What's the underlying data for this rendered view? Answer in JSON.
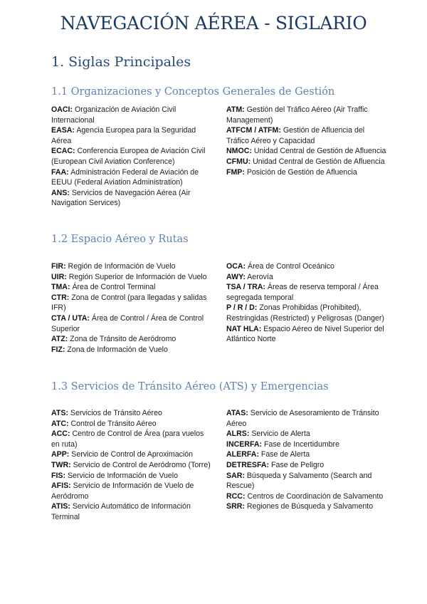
{
  "title": "NAVEGACIÓN AÉREA - SIGLARIO",
  "heading": "1. Siglas Principales",
  "sections": [
    {
      "heading": "1.1 Organizaciones y Conceptos Generales de Gestión",
      "left": [
        {
          "abbr": "OACI:",
          "def": "Organización de Aviación Civil Internacional"
        },
        {
          "abbr": "EASA:",
          "def": "Agencia Europea para la Seguridad Aérea"
        },
        {
          "abbr": "ECAC:",
          "def": "Conferencia Europea de Aviación Civil (European Civil Aviation Conference)"
        },
        {
          "abbr": "FAA:",
          "def": "Administración Federal de Aviación de EEUU (Federal Aviation Administration)"
        },
        {
          "abbr": "ANS:",
          "def": "Servicios de Navegación Aérea (Air Navigation Services)"
        }
      ],
      "right": [
        {
          "abbr": "ATM:",
          "def": "Gestión del Tráfico Aéreo (Air Traffic Management)"
        },
        {
          "abbr": "ATFCM / ATFM:",
          "def": "Gestión de Afluencia del Tráfico Aéreo y Capacidad"
        },
        {
          "abbr": "NMOC:",
          "def": "Unidad Central de Gestión de Afluencia"
        },
        {
          "abbr": "CFMU:",
          "def": "Unidad Central de Gestión de Afluencia"
        },
        {
          "abbr": "FMP:",
          "def": "Posición de Gestión de Afluencia"
        }
      ]
    },
    {
      "heading": "1.2 Espacio Aéreo y Rutas",
      "left": [
        {
          "abbr": "FIR:",
          "def": "Región de Información de Vuelo"
        },
        {
          "abbr": "UIR:",
          "def": "Región Superior de Información de Vuelo"
        },
        {
          "abbr": "TMA:",
          "def": "Área de Control Terminal"
        },
        {
          "abbr": "CTR:",
          "def": "Zona de Control (para llegadas y salidas IFR)"
        },
        {
          "abbr": "CTA / UTA:",
          "def": "Área de Control / Área de Control Superior"
        },
        {
          "abbr": "ATZ:",
          "def": "Zona de Tránsito de Aeródromo"
        },
        {
          "abbr": "FIZ:",
          "def": "Zona de Información de Vuelo"
        }
      ],
      "right": [
        {
          "abbr": "OCA:",
          "def": "Área de Control Oceánico"
        },
        {
          "abbr": "AWY:",
          "def": "Aerovía"
        },
        {
          "abbr": "TSA / TRA:",
          "def": "Áreas de reserva temporal / Área segregada temporal"
        },
        {
          "abbr": "P / R / D:",
          "def": "Zonas Prohibidas (Prohibited), Restringidas (Restricted) y Peligrosas (Danger)"
        },
        {
          "abbr": "NAT HLA:",
          "def": "Espacio Aéreo de Nivel Superior del Atlántico Norte"
        }
      ]
    },
    {
      "heading": "1.3 Servicios de Tránsito Aéreo (ATS) y Emergencias",
      "left": [
        {
          "abbr": "ATS:",
          "def": "Servicios de Tránsito Aéreo"
        },
        {
          "abbr": "ATC:",
          "def": "Control de Tránsito Aéreo"
        },
        {
          "abbr": "ACC:",
          "def": "Centro de Control de Área (para vuelos en ruta)"
        },
        {
          "abbr": "APP:",
          "def": "Servicio de Control de Aproximación"
        },
        {
          "abbr": "TWR:",
          "def": "Servicio de Control de Aeródromo (Torre)"
        },
        {
          "abbr": "FIS:",
          "def": "Servicio de Información de Vuelo"
        },
        {
          "abbr": "AFIS:",
          "def": "Servicio de Información de Vuelo de Aeródromo"
        },
        {
          "abbr": "ATIS:",
          "def": "Servicio Automático de Información Terminal"
        }
      ],
      "right": [
        {
          "abbr": "ATAS:",
          "def": "Servicio de Asesoramiento de Tránsito Aéreo"
        },
        {
          "abbr": "ALRS:",
          "def": "Servicio de Alerta"
        },
        {
          "abbr": "INCERFA:",
          "def": "Fase de Incertidumbre"
        },
        {
          "abbr": "ALERFA:",
          "def": "Fase de Alerta"
        },
        {
          "abbr": "DETRESFA:",
          "def": "Fase de Peligro"
        },
        {
          "abbr": "SAR:",
          "def": "Búsqueda y Salvamento (Search and Rescue)"
        },
        {
          "abbr": "RCC:",
          "def": "Centros de Coordinación de Salvamento"
        },
        {
          "abbr": "SRR:",
          "def": "Regiones de Búsqueda y Salvamento"
        }
      ]
    }
  ]
}
